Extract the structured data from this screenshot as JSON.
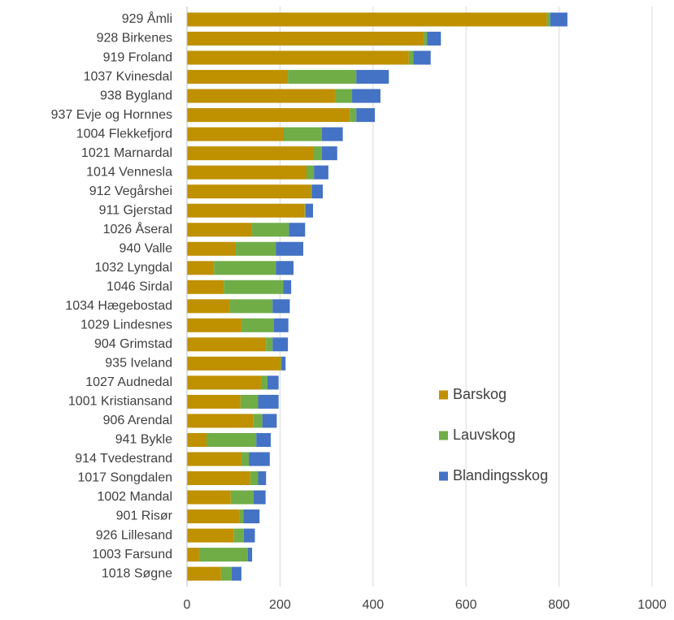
{
  "chart_data": {
    "type": "stacked_barh",
    "categories": [
      "929 Åmli",
      "928 Birkenes",
      "919 Froland",
      "1037 Kvinesdal",
      "938 Bygland",
      "937 Evje og Hornnes",
      "1004 Flekkefjord",
      "1021 Marnardal",
      "1014 Vennesla",
      "912 Vegårshei",
      "911 Gjerstad",
      "1026 Åseral",
      "940 Valle",
      "1032 Lyngdal",
      "1046 Sirdal",
      "1034 Hægebostad",
      "1029 Lindesnes",
      "904 Grimstad",
      "935 Iveland",
      "1027 Audnedal",
      "1001 Kristiansand",
      "906 Arendal",
      "941 Bykle",
      "914 Tvedestrand",
      "1017 Songdalen",
      "1002 Mandal",
      "901 Risør",
      "926 Lillesand",
      "1003 Farsund",
      "1018 Søgne"
    ],
    "series": [
      {
        "name": "Barskog",
        "color": "#bf9000",
        "values": [
          774,
          509,
          477,
          217,
          318,
          350,
          208,
          271,
          257,
          266,
          253,
          140,
          105,
          58,
          79,
          91,
          117,
          170,
          201,
          159,
          115,
          143,
          42,
          117,
          136,
          94,
          112,
          101,
          26,
          73
        ]
      },
      {
        "name": "Lauvskog",
        "color": "#70ad47",
        "values": [
          7,
          7,
          10,
          147,
          37,
          14,
          82,
          19,
          16,
          2,
          2,
          79,
          86,
          133,
          128,
          93,
          70,
          14,
          2,
          14,
          38,
          19,
          107,
          16,
          17,
          49,
          9,
          21,
          105,
          23
        ]
      },
      {
        "name": "Blandingsskog",
        "color": "#4472c4",
        "values": [
          37,
          30,
          37,
          70,
          61,
          40,
          45,
          33,
          31,
          24,
          16,
          35,
          59,
          38,
          17,
          37,
          31,
          33,
          9,
          24,
          44,
          31,
          31,
          45,
          17,
          26,
          35,
          24,
          9,
          21
        ]
      }
    ],
    "xlim": [
      0,
      1000
    ],
    "xticks": [
      0,
      200,
      400,
      600,
      800,
      1000
    ],
    "grid": true
  }
}
